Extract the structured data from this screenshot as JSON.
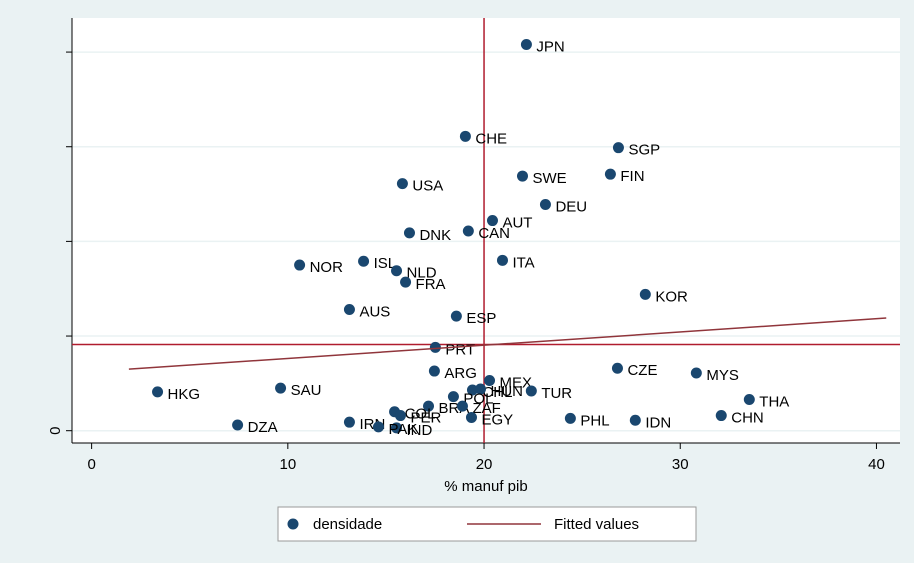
{
  "chart_data": {
    "type": "scatter",
    "x_label": "% manuf pib",
    "xlim": [
      -1,
      41.2
    ],
    "xticks": [
      0,
      10,
      20,
      30,
      40
    ],
    "ylim": [
      -0.13,
      4.36
    ],
    "yticks": [
      0
    ],
    "yminorticks": [
      1,
      2,
      3,
      4
    ],
    "grid": true,
    "legend": "bottom",
    "xline": {
      "value": 20,
      "color": "#b01c2e"
    },
    "yline": {
      "value": 0.91,
      "color": "#b01c2e"
    },
    "series": [
      {
        "name": "densidade",
        "type": "scatter",
        "color": "#1a476f",
        "labels": [
          "JPN",
          "CHE",
          "SGP",
          "USA",
          "SWE",
          "FIN",
          "DEU",
          "AUT",
          "DNK",
          "CAN",
          "NOR",
          "ISL",
          "NLD",
          "ITA",
          "FRA",
          "KOR",
          "AUS",
          "ESP",
          "PRT",
          "ARG",
          "CZE",
          "MYS",
          "MEX",
          "HKG",
          "SAU",
          "CHL",
          "HUN",
          "TUR",
          "POL",
          "BRA",
          "ZAF",
          "THA",
          "COL",
          "PER",
          "EGY",
          "PHL",
          "IDN",
          "CHN",
          "IRN",
          "DZA",
          "IND",
          "PAK"
        ],
        "x": [
          22.16,
          19.05,
          26.85,
          15.84,
          21.96,
          26.44,
          23.13,
          20.43,
          16.2,
          19.2,
          10.6,
          13.86,
          15.54,
          20.94,
          16.0,
          28.22,
          13.14,
          18.59,
          17.52,
          17.47,
          26.8,
          30.82,
          20.28,
          3.36,
          9.63,
          19.41,
          19.82,
          22.41,
          18.44,
          17.17,
          18.9,
          33.52,
          15.44,
          15.74,
          19.36,
          24.4,
          27.71,
          32.09,
          13.14,
          7.44,
          15.54,
          14.62
        ],
        "values": [
          4.08,
          3.11,
          2.99,
          2.61,
          2.69,
          2.71,
          2.39,
          2.22,
          2.09,
          2.11,
          1.75,
          1.79,
          1.69,
          1.8,
          1.57,
          1.44,
          1.28,
          1.21,
          0.88,
          0.63,
          0.66,
          0.61,
          0.53,
          0.41,
          0.45,
          0.43,
          0.44,
          0.42,
          0.36,
          0.26,
          0.26,
          0.33,
          0.2,
          0.16,
          0.14,
          0.13,
          0.11,
          0.16,
          0.09,
          0.06,
          0.03,
          0.04
        ]
      },
      {
        "name": "Fitted values",
        "type": "line",
        "color": "#90353b",
        "x": [
          1.9,
          40.5
        ],
        "values": [
          0.65,
          1.19
        ]
      }
    ]
  }
}
